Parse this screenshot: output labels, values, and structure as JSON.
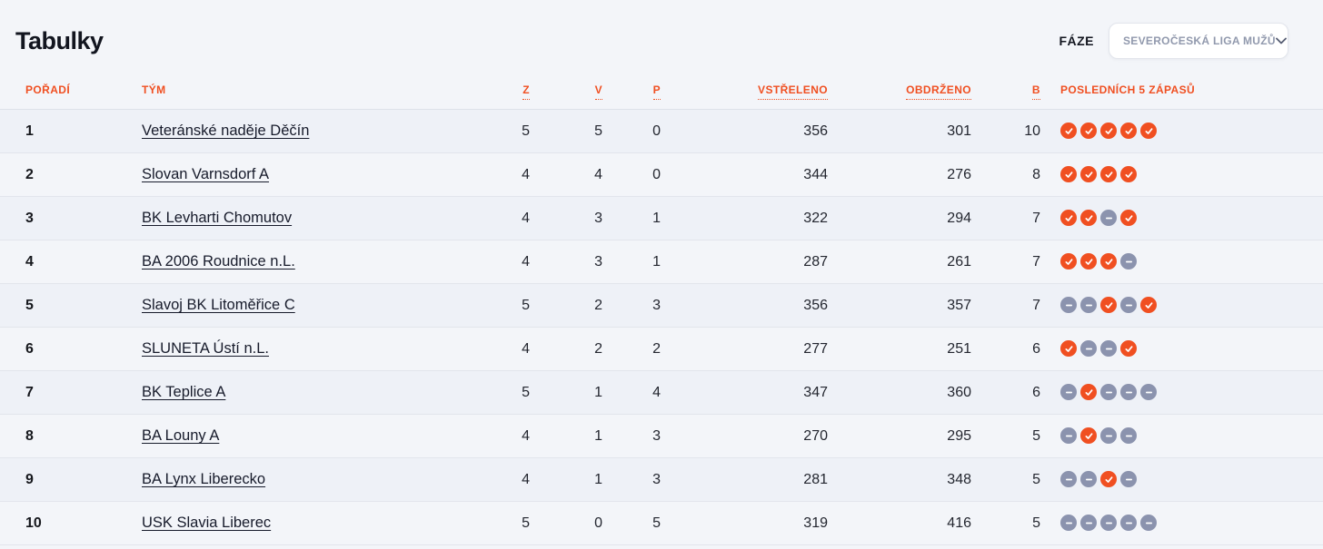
{
  "header": {
    "title": "Tabulky",
    "phase_label": "FÁZE",
    "phase_value": "SEVEROČESKÁ LIGA MUŽŮ"
  },
  "icons": {
    "dropdown": "chevron-down-icon",
    "win": "check-circle-icon",
    "loss": "minus-circle-icon"
  },
  "colors": {
    "accent_orange": "#f04f21",
    "loss_gray": "#8b93ae",
    "page_background": "#f3f5f9"
  },
  "table": {
    "columns": [
      {
        "key": "rank",
        "label": "POŘADÍ"
      },
      {
        "key": "team",
        "label": "TÝM"
      },
      {
        "key": "games",
        "label": "Z"
      },
      {
        "key": "wins",
        "label": "V"
      },
      {
        "key": "losses",
        "label": "P"
      },
      {
        "key": "scored",
        "label": "VSTŘELENO"
      },
      {
        "key": "conceded",
        "label": "OBDRŽENO"
      },
      {
        "key": "points",
        "label": "B"
      },
      {
        "key": "last5",
        "label": "POSLEDNÍCH 5 ZÁPASŮ"
      }
    ],
    "rows": [
      {
        "rank": "1",
        "team": "Veteránské naděje Děčín",
        "games": "5",
        "wins": "5",
        "losses": "0",
        "scored": "356",
        "conceded": "301",
        "points": "10",
        "last5": [
          "win",
          "win",
          "win",
          "win",
          "win"
        ]
      },
      {
        "rank": "2",
        "team": "Slovan Varnsdorf A",
        "games": "4",
        "wins": "4",
        "losses": "0",
        "scored": "344",
        "conceded": "276",
        "points": "8",
        "last5": [
          "win",
          "win",
          "win",
          "win"
        ]
      },
      {
        "rank": "3",
        "team": "BK Levharti Chomutov",
        "games": "4",
        "wins": "3",
        "losses": "1",
        "scored": "322",
        "conceded": "294",
        "points": "7",
        "last5": [
          "win",
          "win",
          "loss",
          "win"
        ]
      },
      {
        "rank": "4",
        "team": "BA 2006 Roudnice n.L.",
        "games": "4",
        "wins": "3",
        "losses": "1",
        "scored": "287",
        "conceded": "261",
        "points": "7",
        "last5": [
          "win",
          "win",
          "win",
          "loss"
        ]
      },
      {
        "rank": "5",
        "team": "Slavoj BK Litoměřice C",
        "games": "5",
        "wins": "2",
        "losses": "3",
        "scored": "356",
        "conceded": "357",
        "points": "7",
        "last5": [
          "loss",
          "loss",
          "win",
          "loss",
          "win"
        ]
      },
      {
        "rank": "6",
        "team": "SLUNETA Ústí n.L.",
        "games": "4",
        "wins": "2",
        "losses": "2",
        "scored": "277",
        "conceded": "251",
        "points": "6",
        "last5": [
          "win",
          "loss",
          "loss",
          "win"
        ]
      },
      {
        "rank": "7",
        "team": "BK Teplice A",
        "games": "5",
        "wins": "1",
        "losses": "4",
        "scored": "347",
        "conceded": "360",
        "points": "6",
        "last5": [
          "loss",
          "win",
          "loss",
          "loss",
          "loss"
        ]
      },
      {
        "rank": "8",
        "team": "BA Louny A",
        "games": "4",
        "wins": "1",
        "losses": "3",
        "scored": "270",
        "conceded": "295",
        "points": "5",
        "last5": [
          "loss",
          "win",
          "loss",
          "loss"
        ]
      },
      {
        "rank": "9",
        "team": "BA Lynx Liberecko",
        "games": "4",
        "wins": "1",
        "losses": "3",
        "scored": "281",
        "conceded": "348",
        "points": "5",
        "last5": [
          "loss",
          "loss",
          "win",
          "loss"
        ]
      },
      {
        "rank": "10",
        "team": "USK Slavia Liberec",
        "games": "5",
        "wins": "0",
        "losses": "5",
        "scored": "319",
        "conceded": "416",
        "points": "5",
        "last5": [
          "loss",
          "loss",
          "loss",
          "loss",
          "loss"
        ]
      }
    ]
  }
}
